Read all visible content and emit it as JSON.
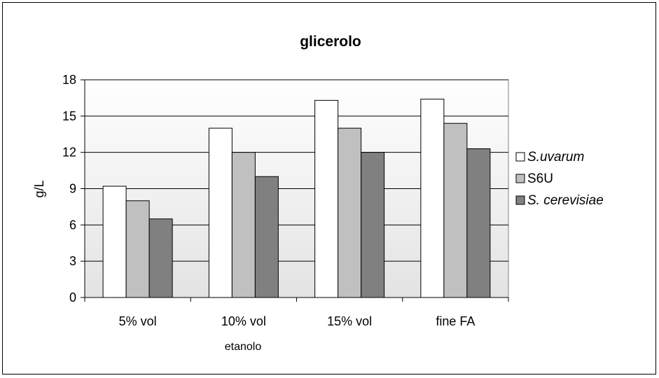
{
  "chart_data": {
    "type": "bar",
    "title": "glicerolo",
    "xlabel": "etanolo",
    "ylabel": "g/L",
    "ylim": [
      0,
      18
    ],
    "yticks": [
      0,
      3,
      6,
      9,
      12,
      15,
      18
    ],
    "categories": [
      "5% vol",
      "10% vol",
      "15% vol",
      "fine FA"
    ],
    "series": [
      {
        "name": "S.uvarum",
        "name_italic": true,
        "color": "#ffffff",
        "values": [
          9.2,
          14.0,
          16.3,
          16.4
        ]
      },
      {
        "name": "S6U",
        "name_italic": false,
        "color": "#c0c0c0",
        "values": [
          8.0,
          12.0,
          14.0,
          14.4
        ]
      },
      {
        "name": "S. cerevisiae",
        "name_italic": true,
        "color": "#808080",
        "values": [
          6.5,
          10.0,
          12.0,
          12.3
        ]
      }
    ],
    "grid": true,
    "legend": "right",
    "plot_background": [
      "#ffffff",
      "#e3e3e3"
    ]
  }
}
